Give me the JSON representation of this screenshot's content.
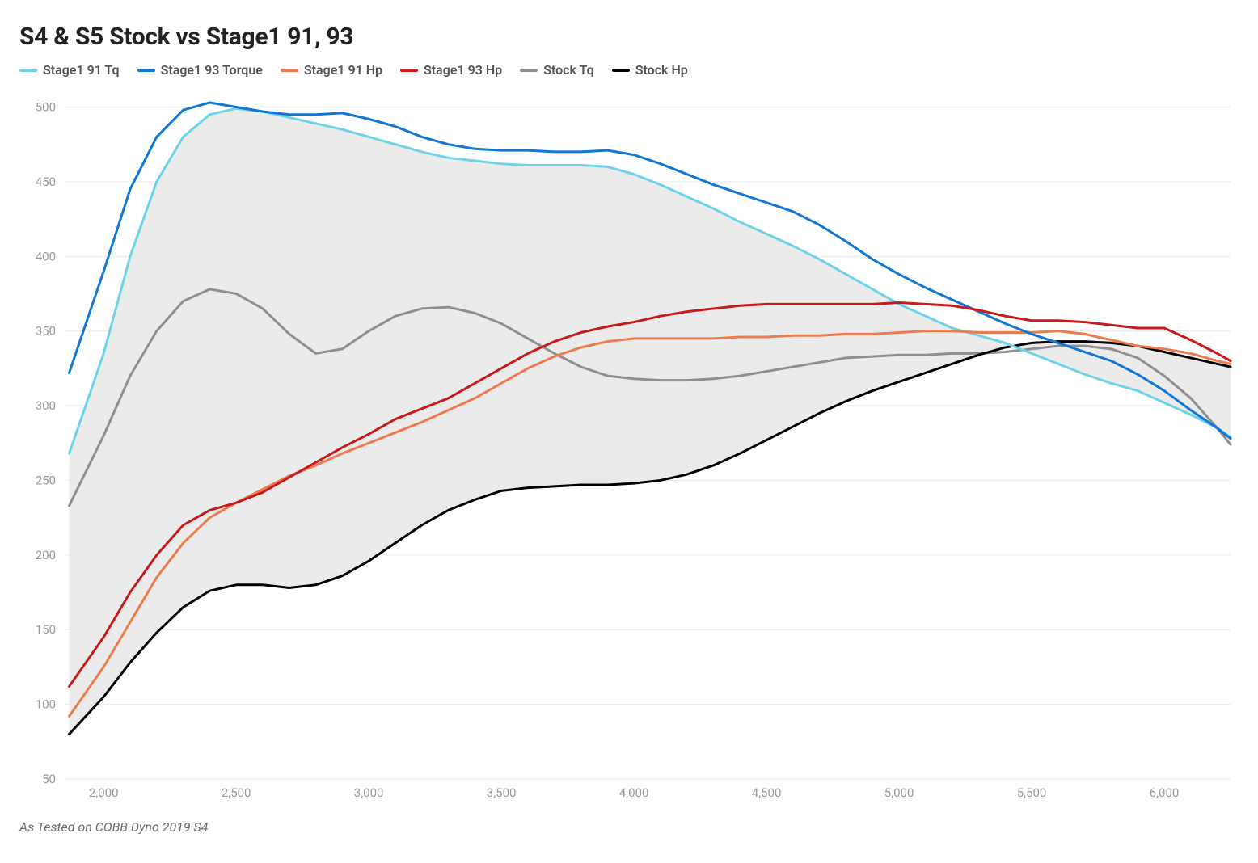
{
  "title": "S4 & S5 Stock vs Stage1 91, 93",
  "footnote": "As Tested on COBB Dyno 2019 S4",
  "chart": {
    "type": "line",
    "background_color": "#ffffff",
    "grid_color": "#e9e9e9",
    "axis_label_color": "#9a9a9a",
    "axis_label_fontsize": 15,
    "title_fontsize": 30,
    "x": {
      "min": 1850,
      "max": 6250,
      "ticks": [
        2000,
        2500,
        3000,
        3500,
        4000,
        4500,
        5000,
        5500,
        6000
      ]
    },
    "y": {
      "min": 50,
      "max": 510,
      "ticks": [
        50,
        100,
        150,
        200,
        250,
        300,
        350,
        400,
        450,
        500
      ]
    },
    "fill_between": {
      "upper_series": "stage1_91_tq",
      "lower_series": "stock_hp",
      "color": "#e8e8e8",
      "opacity": 0.85
    },
    "legend": [
      {
        "key": "stage1_91_tq",
        "label": "Stage1 91 Tq",
        "color": "#6ed3e9"
      },
      {
        "key": "stage1_93_tq",
        "label": "Stage1 93 Torque",
        "color": "#1177d6"
      },
      {
        "key": "stage1_91_hp",
        "label": "Stage1 91 Hp",
        "color": "#ee7b4e"
      },
      {
        "key": "stage1_93_hp",
        "label": "Stage1 93 Hp",
        "color": "#c81a1a"
      },
      {
        "key": "stock_tq",
        "label": "Stock Tq",
        "color": "#8f8f8f"
      },
      {
        "key": "stock_hp",
        "label": "Stock Hp",
        "color": "#000000"
      }
    ],
    "line_width": 3,
    "series": {
      "stage1_91_tq": {
        "color": "#6ed3e9",
        "x": [
          1870,
          2000,
          2100,
          2200,
          2300,
          2400,
          2500,
          2600,
          2700,
          2800,
          2900,
          3000,
          3100,
          3200,
          3300,
          3400,
          3500,
          3600,
          3700,
          3800,
          3900,
          4000,
          4100,
          4200,
          4300,
          4400,
          4500,
          4600,
          4700,
          4800,
          4900,
          5000,
          5100,
          5200,
          5300,
          5400,
          5500,
          5600,
          5700,
          5800,
          5900,
          6000,
          6100,
          6200,
          6250
        ],
        "y": [
          268,
          335,
          400,
          450,
          480,
          495,
          499,
          497,
          493,
          489,
          485,
          480,
          475,
          470,
          466,
          464,
          462,
          461,
          461,
          461,
          460,
          455,
          448,
          440,
          432,
          423,
          415,
          407,
          398,
          388,
          378,
          368,
          360,
          352,
          347,
          342,
          335,
          328,
          321,
          315,
          310,
          302,
          294,
          285,
          279
        ]
      },
      "stage1_93_tq": {
        "color": "#1177d6",
        "x": [
          1870,
          2000,
          2100,
          2200,
          2300,
          2400,
          2500,
          2600,
          2700,
          2800,
          2900,
          3000,
          3100,
          3200,
          3300,
          3400,
          3500,
          3600,
          3700,
          3800,
          3900,
          4000,
          4100,
          4200,
          4300,
          4400,
          4500,
          4600,
          4700,
          4800,
          4900,
          5000,
          5100,
          5200,
          5300,
          5400,
          5500,
          5600,
          5700,
          5800,
          5900,
          6000,
          6100,
          6200,
          6250
        ],
        "y": [
          322,
          390,
          445,
          480,
          498,
          503,
          500,
          497,
          495,
          495,
          496,
          492,
          487,
          480,
          475,
          472,
          471,
          471,
          470,
          470,
          471,
          468,
          462,
          455,
          448,
          442,
          436,
          430,
          421,
          410,
          398,
          388,
          379,
          371,
          363,
          355,
          348,
          342,
          336,
          330,
          321,
          310,
          297,
          285,
          278
        ]
      },
      "stage1_91_hp": {
        "color": "#ee7b4e",
        "x": [
          1870,
          2000,
          2100,
          2200,
          2300,
          2400,
          2500,
          2600,
          2700,
          2800,
          2900,
          3000,
          3100,
          3200,
          3300,
          3400,
          3500,
          3600,
          3700,
          3800,
          3900,
          4000,
          4100,
          4200,
          4300,
          4400,
          4500,
          4600,
          4700,
          4800,
          4900,
          5000,
          5100,
          5200,
          5300,
          5400,
          5500,
          5600,
          5700,
          5800,
          5900,
          6000,
          6100,
          6200,
          6250
        ],
        "y": [
          92,
          125,
          155,
          185,
          208,
          225,
          235,
          244,
          253,
          260,
          268,
          275,
          282,
          289,
          297,
          305,
          315,
          325,
          333,
          339,
          343,
          345,
          345,
          345,
          345,
          346,
          346,
          347,
          347,
          348,
          348,
          349,
          350,
          350,
          349,
          349,
          349,
          350,
          348,
          344,
          340,
          338,
          335,
          330,
          328
        ]
      },
      "stage1_93_hp": {
        "color": "#c81a1a",
        "x": [
          1870,
          2000,
          2100,
          2200,
          2300,
          2400,
          2500,
          2600,
          2700,
          2800,
          2900,
          3000,
          3100,
          3200,
          3300,
          3400,
          3500,
          3600,
          3700,
          3800,
          3900,
          4000,
          4100,
          4200,
          4300,
          4400,
          4500,
          4600,
          4700,
          4800,
          4900,
          5000,
          5100,
          5200,
          5300,
          5400,
          5500,
          5600,
          5700,
          5800,
          5900,
          6000,
          6100,
          6200,
          6250
        ],
        "y": [
          112,
          145,
          175,
          200,
          220,
          230,
          235,
          242,
          252,
          262,
          272,
          281,
          291,
          298,
          305,
          315,
          325,
          335,
          343,
          349,
          353,
          356,
          360,
          363,
          365,
          367,
          368,
          368,
          368,
          368,
          368,
          369,
          368,
          367,
          364,
          360,
          357,
          357,
          356,
          354,
          352,
          352,
          344,
          335,
          330
        ]
      },
      "stock_tq": {
        "color": "#8f8f8f",
        "x": [
          1870,
          2000,
          2100,
          2200,
          2300,
          2400,
          2500,
          2600,
          2700,
          2800,
          2900,
          3000,
          3100,
          3200,
          3300,
          3400,
          3500,
          3600,
          3700,
          3800,
          3900,
          4000,
          4100,
          4200,
          4300,
          4400,
          4500,
          4600,
          4700,
          4800,
          4900,
          5000,
          5100,
          5200,
          5300,
          5400,
          5500,
          5600,
          5700,
          5800,
          5900,
          6000,
          6100,
          6200,
          6250
        ],
        "y": [
          233,
          280,
          320,
          350,
          370,
          378,
          375,
          365,
          348,
          335,
          338,
          350,
          360,
          365,
          366,
          362,
          355,
          345,
          335,
          326,
          320,
          318,
          317,
          317,
          318,
          320,
          323,
          326,
          329,
          332,
          333,
          334,
          334,
          335,
          335,
          336,
          338,
          340,
          340,
          338,
          332,
          320,
          305,
          285,
          274
        ]
      },
      "stock_hp": {
        "color": "#000000",
        "x": [
          1870,
          2000,
          2100,
          2200,
          2300,
          2400,
          2500,
          2600,
          2700,
          2800,
          2900,
          3000,
          3100,
          3200,
          3300,
          3400,
          3500,
          3600,
          3700,
          3800,
          3900,
          4000,
          4100,
          4200,
          4300,
          4400,
          4500,
          4600,
          4700,
          4800,
          4900,
          5000,
          5100,
          5200,
          5300,
          5400,
          5500,
          5600,
          5700,
          5800,
          5900,
          6000,
          6100,
          6200,
          6250
        ],
        "y": [
          80,
          105,
          128,
          148,
          165,
          176,
          180,
          180,
          178,
          180,
          186,
          196,
          208,
          220,
          230,
          237,
          243,
          245,
          246,
          247,
          247,
          248,
          250,
          254,
          260,
          268,
          277,
          286,
          295,
          303,
          310,
          316,
          322,
          328,
          334,
          339,
          342,
          343,
          343,
          342,
          340,
          336,
          332,
          328,
          326
        ]
      }
    }
  }
}
